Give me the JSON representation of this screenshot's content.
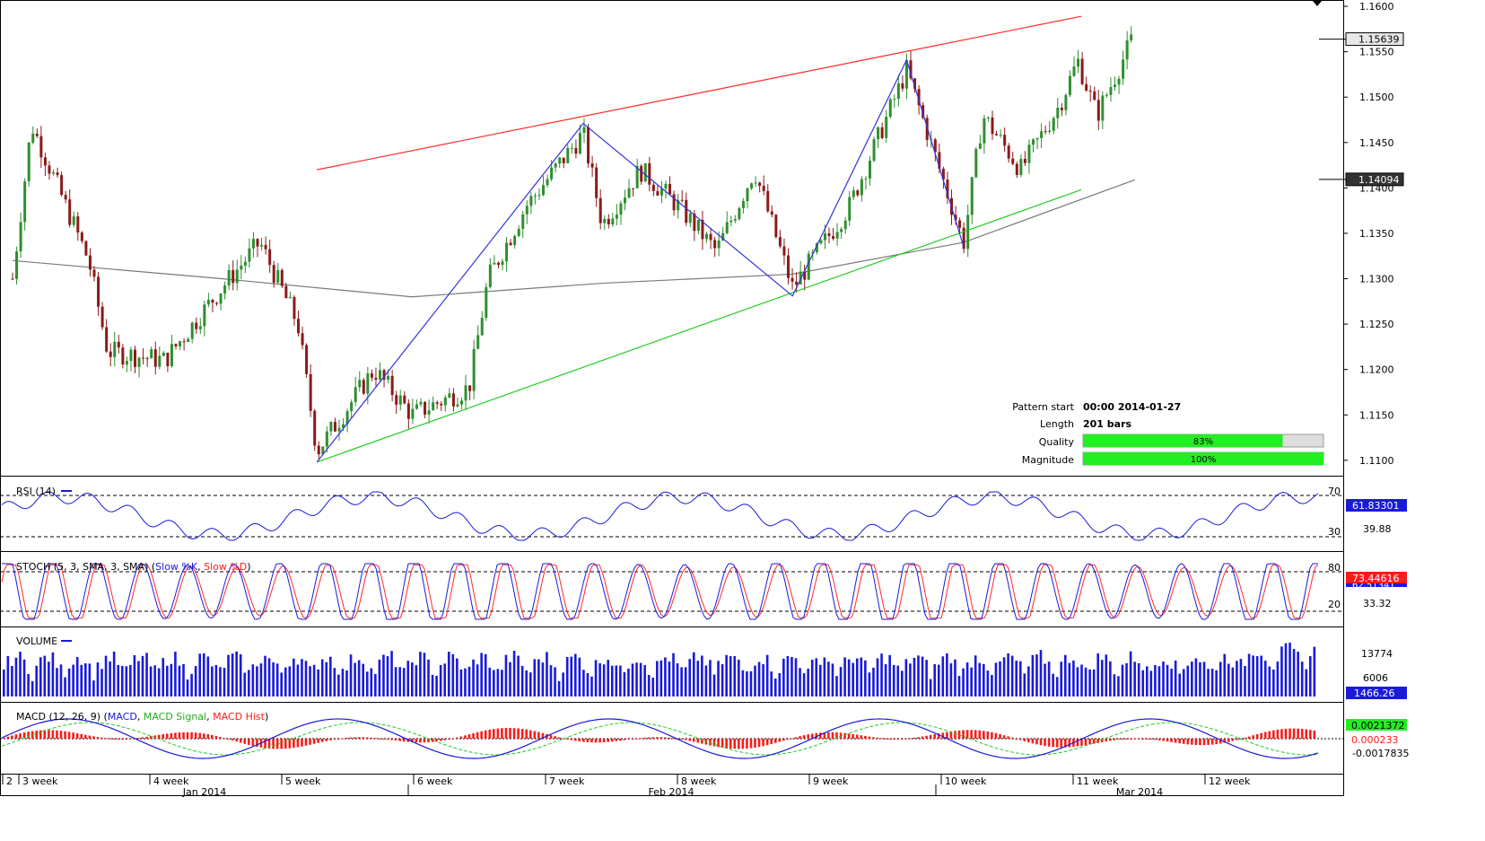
{
  "price_panel": {
    "current_price_label": "1.15639",
    "ma_value_label": "1.14094",
    "y_ticks": [
      "1.1600",
      "1.1550",
      "1.1500",
      "1.1450",
      "1.1400",
      "1.1350",
      "1.1300",
      "1.1250",
      "1.1200",
      "1.1150",
      "1.1100"
    ],
    "pattern_info": {
      "start_label": "Pattern start",
      "start_value": "00:00 2014-01-27",
      "length_label": "Length",
      "length_value": "201 bars",
      "quality_label": "Quality",
      "quality_value": "83%",
      "quality_fraction": 0.83,
      "magnitude_label": "Magnitude",
      "magnitude_value": "100%",
      "magnitude_fraction": 1.0
    }
  },
  "rsi_panel": {
    "title": "RSI (14)",
    "level_high": "70",
    "level_low": "30",
    "value_label": "61.83301",
    "mid_label": "39.88"
  },
  "stoch_panel": {
    "title": "STOCH (5, 3, SMA, 3, SMA)",
    "k_label": "Slow %K",
    "d_label": "Slow %D",
    "level_high": "80",
    "level_low": "20",
    "value_label": "73.44616",
    "value2_label": "62.51341",
    "mid_label": "33.32"
  },
  "volume_panel": {
    "title": "VOLUME",
    "tick_high": "13774",
    "tick_mid": "6006",
    "value_label": "1466.26"
  },
  "macd_panel": {
    "title": "MACD (12, 26, 9)",
    "macd_label": "MACD",
    "signal_label": "MACD Signal",
    "hist_label": "MACD Hist",
    "value_green": "0.0021372",
    "value_red": "0.000233",
    "tick_low": "-0.0017835"
  },
  "x_axis": {
    "week_labels": [
      "2",
      "3 week",
      "4 week",
      "5 week",
      "6 week",
      "7 week",
      "8 week",
      "9 week",
      "10 week",
      "11 week",
      "12 week"
    ],
    "month_labels": [
      "Jan 2014",
      "Feb 2014",
      "Mar 2014"
    ]
  },
  "colors": {
    "up_candle": "#2f8f2f",
    "down_candle": "#8b1a1a",
    "resistance_line": "#ff2a2a",
    "support_line": "#22cc22",
    "zigzag": "#3333dd",
    "ma": "#7a7a7a",
    "volume": "#1a1adb",
    "macd": "#1a1adb",
    "signal": "#22cc22",
    "hist": "#ff1a1a"
  },
  "chart_data": {
    "type": "candlestick",
    "instrument_timeframe": "H4 (approx.)",
    "y_range": [
      1.1085,
      1.1605
    ],
    "pattern": {
      "resistance": [
        {
          "x": "2014-01-27",
          "y": 1.142
        },
        {
          "x": "2014-03-21",
          "y": 1.1588
        }
      ],
      "support": [
        {
          "x": "2014-01-27",
          "y": 1.1098
        },
        {
          "x": "2014-03-21",
          "y": 1.1392
        }
      ],
      "zigzag": [
        {
          "x": "2014-01-27",
          "y": 1.1098
        },
        {
          "x": "2014-02-14",
          "y": 1.1471
        },
        {
          "x": "2014-03-03",
          "y": 1.1281
        },
        {
          "x": "2014-03-11",
          "y": 1.1541
        },
        {
          "x": "2014-03-14",
          "y": 1.1335
        }
      ]
    },
    "close_keypoints": [
      {
        "x": "2014-01-03",
        "y": 1.13
      },
      {
        "x": "2014-01-06",
        "y": 1.147
      },
      {
        "x": "2014-01-09",
        "y": 1.132
      },
      {
        "x": "2014-01-10",
        "y": 1.122
      },
      {
        "x": "2014-01-15",
        "y": 1.121
      },
      {
        "x": "2014-01-20",
        "y": 1.129
      },
      {
        "x": "2014-01-22",
        "y": 1.134
      },
      {
        "x": "2014-01-24",
        "y": 1.125
      },
      {
        "x": "2014-01-27",
        "y": 1.111
      },
      {
        "x": "2014-01-30",
        "y": 1.12
      },
      {
        "x": "2014-02-03",
        "y": 1.115
      },
      {
        "x": "2014-02-06",
        "y": 1.118
      },
      {
        "x": "2014-02-07",
        "y": 1.13
      },
      {
        "x": "2014-02-11",
        "y": 1.138
      },
      {
        "x": "2014-02-14",
        "y": 1.146
      },
      {
        "x": "2014-02-17",
        "y": 1.136
      },
      {
        "x": "2014-02-19",
        "y": 1.142
      },
      {
        "x": "2014-02-21",
        "y": 1.138
      },
      {
        "x": "2014-02-25",
        "y": 1.133
      },
      {
        "x": "2014-02-27",
        "y": 1.142
      },
      {
        "x": "2014-03-03",
        "y": 1.129
      },
      {
        "x": "2014-03-06",
        "y": 1.138
      },
      {
        "x": "2014-03-11",
        "y": 1.153
      },
      {
        "x": "2014-03-14",
        "y": 1.134
      },
      {
        "x": "2014-03-17",
        "y": 1.148
      },
      {
        "x": "2014-03-19",
        "y": 1.142
      },
      {
        "x": "2014-03-21",
        "y": 1.149
      },
      {
        "x": "2014-03-24",
        "y": 1.154
      },
      {
        "x": "2014-03-25",
        "y": 1.148
      },
      {
        "x": "2014-03-27",
        "y": 1.157
      }
    ],
    "ma_keypoints": [
      {
        "x": "2014-01-03",
        "y": 1.132
      },
      {
        "x": "2014-01-20",
        "y": 1.13
      },
      {
        "x": "2014-02-03",
        "y": 1.128
      },
      {
        "x": "2014-02-17",
        "y": 1.1295
      },
      {
        "x": "2014-03-03",
        "y": 1.1305
      },
      {
        "x": "2014-03-14",
        "y": 1.134
      },
      {
        "x": "2014-03-27",
        "y": 1.1409
      }
    ]
  }
}
